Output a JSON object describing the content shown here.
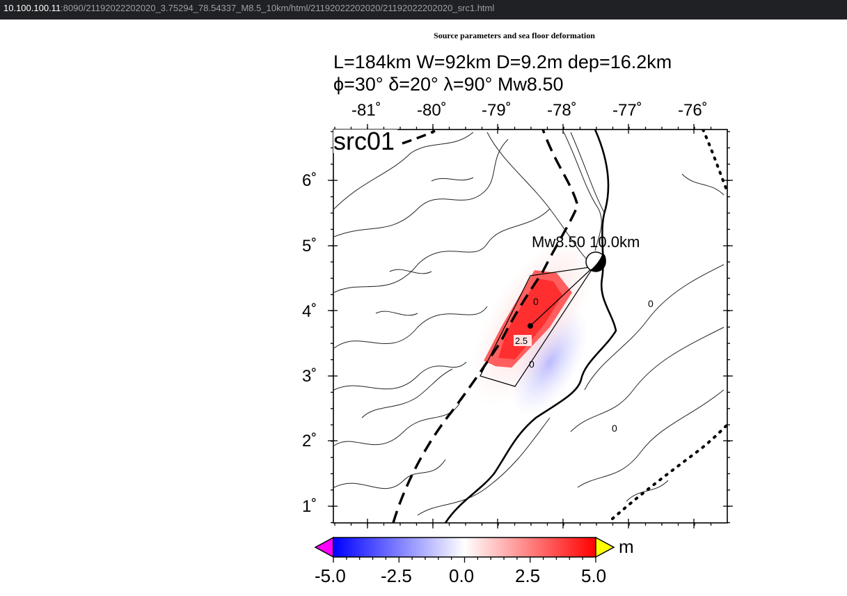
{
  "browser": {
    "url_host": "10.100.100.11",
    "url_rest": ":8090/21192022202020_3.75294_78.54337_M8.5_10km/html/21192022202020/21192022202020_src1.html"
  },
  "page": {
    "title": "Source parameters and sea floor deformation"
  },
  "figure": {
    "params_line1": "L=184km W=92km D=9.2m dep=16.2km",
    "params_line2": "ϕ=30° δ=20° λ=90° Mw8.50",
    "panel_label": "src01",
    "epicenter_label": "Mw8.50  10.0km",
    "lon_ticks": [
      "-81˚",
      "-80˚",
      "-79˚",
      "-78˚",
      "-77˚",
      "-76˚"
    ],
    "lat_ticks": [
      "6˚",
      "5˚",
      "4˚",
      "3˚",
      "2˚",
      "1˚"
    ],
    "contour_labels": [
      "2.5",
      "0",
      "0",
      "0",
      "0"
    ],
    "colorbar": {
      "ticks": [
        "-5.0",
        "-2.5",
        "0.0",
        "2.5",
        "5.0"
      ],
      "unit": "m",
      "min": -5.0,
      "max": 5.0,
      "colors": [
        "#0000ff",
        "#ffffff",
        "#ff0000"
      ],
      "under_color": "#ff00ff",
      "over_color": "#ffff00"
    },
    "colors": {
      "uplift": "#ff2a2a",
      "subsidence": "#8080ff"
    }
  }
}
